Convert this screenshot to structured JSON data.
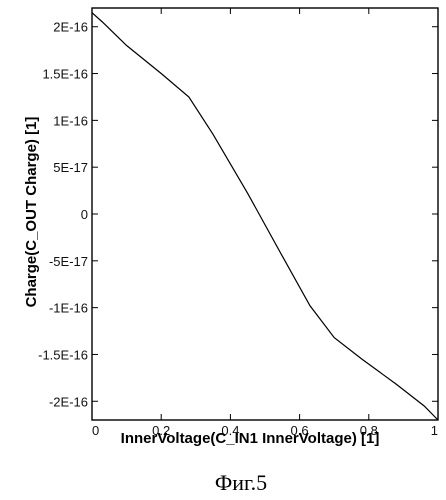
{
  "chart_data": {
    "type": "line",
    "title": "",
    "xlabel": "InnerVoltage(C_IN1 InnerVoltage) [1]",
    "ylabel": "Charge(C_OUT Charge) [1]",
    "xlim": [
      0,
      1
    ],
    "ylim": [
      -2.2e-16,
      2.2e-16
    ],
    "grid": false,
    "x_ticks": [
      {
        "value": 0,
        "label": "0"
      },
      {
        "value": 0.2,
        "label": "0.2"
      },
      {
        "value": 0.4,
        "label": "0.4"
      },
      {
        "value": 0.6,
        "label": "0.6"
      },
      {
        "value": 0.8,
        "label": "0.8"
      },
      {
        "value": 1,
        "label": "1"
      }
    ],
    "y_ticks": [
      {
        "value": 2e-16,
        "label": "2E-16"
      },
      {
        "value": 1.5e-16,
        "label": "1.5E-16"
      },
      {
        "value": 1e-16,
        "label": "1E-16"
      },
      {
        "value": 5e-17,
        "label": "5E-17"
      },
      {
        "value": 0,
        "label": "0"
      },
      {
        "value": -5e-17,
        "label": "-5E-17"
      },
      {
        "value": -1e-16,
        "label": "-1E-16"
      },
      {
        "value": -1.5e-16,
        "label": "-1.5E-16"
      },
      {
        "value": -2e-16,
        "label": "-2E-16"
      }
    ],
    "series": [
      {
        "color": "#000000",
        "x": [
          0,
          0.03,
          0.1,
          0.2,
          0.28,
          0.35,
          0.45,
          0.55,
          0.63,
          0.7,
          0.78,
          0.88,
          0.96,
          1.0
        ],
        "y": [
          2.15e-16,
          2.05e-16,
          1.8e-16,
          1.5e-16,
          1.25e-16,
          8.5e-17,
          2.2e-17,
          -4.5e-17,
          -9.8e-17,
          -1.32e-16,
          -1.55e-16,
          -1.82e-16,
          -2.05e-16,
          -2.2e-16
        ]
      }
    ]
  },
  "caption": "Фиг.5"
}
